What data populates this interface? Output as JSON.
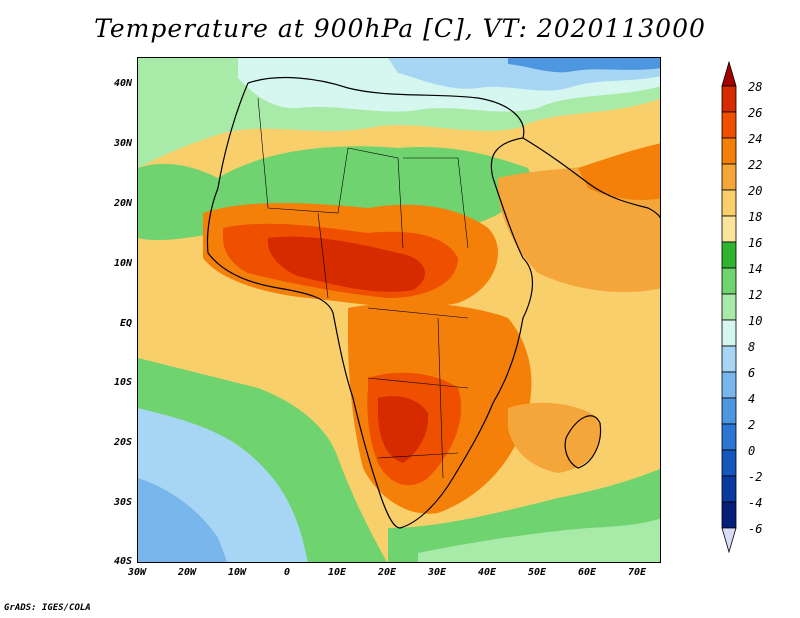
{
  "title": "Temperature at 900hPa [C], VT: 2020113000",
  "credit": "GrADS: IGES/COLA",
  "map": {
    "lat_ticks": [
      "40N",
      "30N",
      "20N",
      "10N",
      "EQ",
      "10S",
      "20S",
      "30S",
      "40S"
    ],
    "lon_ticks": [
      "30W",
      "20W",
      "10W",
      "0",
      "10E",
      "20E",
      "30E",
      "40E",
      "50E",
      "60E",
      "70E"
    ]
  },
  "colorbar": {
    "labels": [
      "28",
      "26",
      "24",
      "22",
      "20",
      "18",
      "16",
      "14",
      "12",
      "10",
      "8",
      "6",
      "4",
      "2",
      "0",
      "-2",
      "-4",
      "-6"
    ],
    "colors": [
      "#a50000",
      "#d62a00",
      "#ee5000",
      "#f4800a",
      "#f5a63a",
      "#f8cf6a",
      "#fbe59a",
      "#2fb42f",
      "#6fd36f",
      "#a8eaa8",
      "#d6f6f0",
      "#a6d6f3",
      "#78b6ec",
      "#4d96e0",
      "#2a76d2",
      "#1456bc",
      "#0a3aa0",
      "#06207a",
      "#d8dcf5"
    ]
  }
}
